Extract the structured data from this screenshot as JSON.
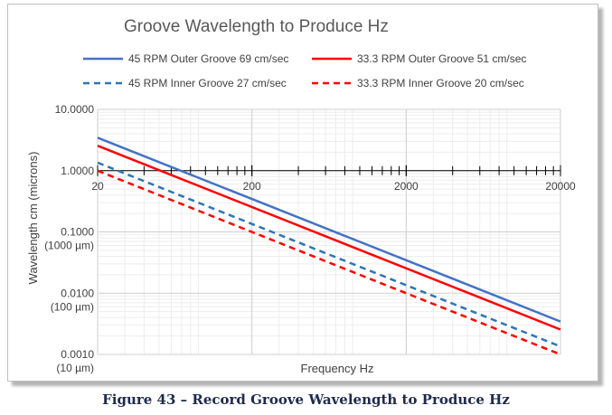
{
  "caption": "Figure 43 – Record Groove Wavelength to Produce Hz",
  "chart_data": {
    "type": "line",
    "title": "Groove Wavelength to Produce Hz",
    "xlabel": "Frequency Hz",
    "ylabel": "Wavelength cm (microns)",
    "x_scale": "log",
    "y_scale": "log",
    "xlim": [
      20,
      20000
    ],
    "ylim": [
      0.001,
      10
    ],
    "x_ticks": [
      "20",
      "200",
      "2000",
      "20000"
    ],
    "y_ticks": [
      {
        "value": 10,
        "label": "10.0000",
        "sublabel": ""
      },
      {
        "value": 1,
        "label": "1.0000",
        "sublabel": ""
      },
      {
        "value": 0.1,
        "label": "0.1000",
        "sublabel": "(1000 µm)"
      },
      {
        "value": 0.01,
        "label": "0.0100",
        "sublabel": "(100 µm)"
      },
      {
        "value": 0.001,
        "label": "0.0010",
        "sublabel": "(10 µm)"
      }
    ],
    "grid": true,
    "legend_position": "top",
    "series": [
      {
        "name": "45 RPM Outer Groove 69 cm/sec",
        "color": "#4472c4",
        "dash": false,
        "points": [
          [
            20,
            3.45
          ],
          [
            20000,
            0.00345
          ]
        ]
      },
      {
        "name": "33.3 RPM Outer Groove 51 cm/sec",
        "color": "#ff0000",
        "dash": false,
        "points": [
          [
            20,
            2.55
          ],
          [
            20000,
            0.00255
          ]
        ]
      },
      {
        "name": "45 RPM Inner Groove 27 cm/sec",
        "color": "#2e75b6",
        "dash": true,
        "points": [
          [
            20,
            1.35
          ],
          [
            20000,
            0.00135
          ]
        ]
      },
      {
        "name": "33.3 RPM Inner Groove 20 cm/sec",
        "color": "#ff0000",
        "dash": true,
        "points": [
          [
            20,
            1.0
          ],
          [
            20000,
            0.001
          ]
        ]
      }
    ]
  }
}
